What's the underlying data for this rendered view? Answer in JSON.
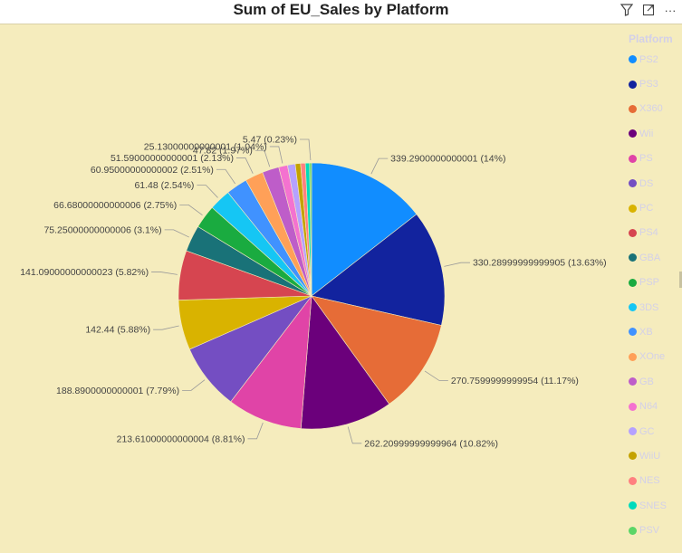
{
  "toolbar": {
    "filter_icon": "filter-icon",
    "focus_icon": "focus-mode-icon",
    "more_label": "···"
  },
  "legend": {
    "title": "Platform"
  },
  "chart_data": {
    "type": "pie",
    "title": "Sum of EU_Sales by Platform",
    "legend_title": "Platform",
    "legend_position": "right",
    "categories": [
      "PS2",
      "PS3",
      "X360",
      "Wii",
      "PS",
      "DS",
      "PC",
      "PS4",
      "GBA",
      "PSP",
      "3DS",
      "XB",
      "XOne",
      "GB",
      "N64",
      "GC",
      "WiiU",
      "NES",
      "SNES",
      "PSV"
    ],
    "colors": [
      "#118dff",
      "#12239e",
      "#e66c37",
      "#6b007b",
      "#e044a7",
      "#744ec2",
      "#d9b300",
      "#d64550",
      "#197278",
      "#1aab40",
      "#15c6f4",
      "#4092ff",
      "#ffa058",
      "#be5dc9",
      "#f472d0",
      "#b5a1ff",
      "#c4a200",
      "#ff8080",
      "#00dbbc",
      "#5bd667"
    ],
    "values": [
      339.2900000000001,
      330.28999999999905,
      270.7599999999954,
      262.20999999999964,
      213.61000000000004,
      188.8900000000001,
      142.44,
      141.09000000000023,
      75.25000000000006,
      66.68000000000006,
      61.48,
      60.95000000000002,
      51.59000000000001,
      47.82,
      25.13000000000001,
      22.0,
      15.0,
      13.5,
      12.0,
      5.47
    ],
    "data_labels": [
      "339.2900000000001 (14%)",
      "330.28999999999905 (13.63%)",
      "270.7599999999954 (11.17%)",
      "262.20999999999964 (10.82%)",
      "213.61000000000004 (8.81%)",
      "188.8900000000001 (7.79%)",
      "142.44 (5.88%)",
      "141.09000000000023 (5.82%)",
      "75.25000000000006 (3.1%)",
      "66.68000000000006 (2.75%)",
      "61.48 (2.54%)",
      "60.95000000000002 (2.51%)",
      "51.59000000000001 (2.13%)",
      "47.82 (1.97%)",
      "25.13000000000001 (1.04%)",
      "",
      "",
      "",
      "",
      "5.47 (0.23%)"
    ]
  }
}
